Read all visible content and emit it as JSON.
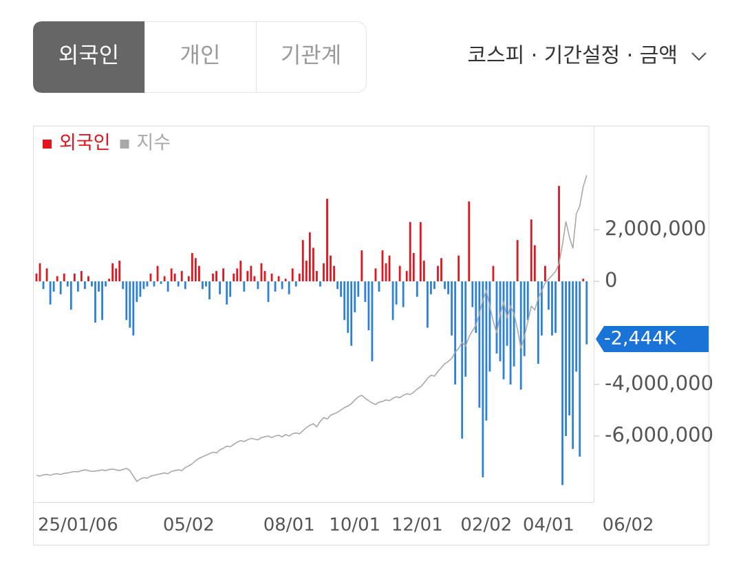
{
  "ui": {
    "tabs": [
      "외국인",
      "개인",
      "기관계"
    ],
    "active_tab": 0,
    "filter": "코스피 · 기간설정 · 금액"
  },
  "chart_data": {
    "type": "bar",
    "categories": [
      null,
      null,
      null,
      null,
      null,
      null,
      null,
      null,
      null,
      null,
      null,
      null,
      "25/01/06",
      null,
      null,
      null,
      null,
      null,
      null,
      null,
      null,
      null,
      null,
      null,
      null,
      null,
      null,
      null,
      null,
      null,
      null,
      null,
      null,
      null,
      null,
      null,
      null,
      null,
      null,
      null,
      null,
      null,
      null,
      null,
      "05/02",
      null,
      null,
      null,
      null,
      null,
      null,
      null,
      null,
      null,
      null,
      null,
      null,
      null,
      null,
      null,
      null,
      null,
      null,
      null,
      null,
      null,
      null,
      null,
      null,
      null,
      null,
      null,
      null,
      "08/01",
      null,
      null,
      null,
      null,
      null,
      null,
      null,
      null,
      null,
      null,
      null,
      null,
      null,
      null,
      null,
      null,
      null,
      null,
      "10/01",
      null,
      null,
      null,
      null,
      null,
      null,
      null,
      null,
      null,
      null,
      null,
      null,
      null,
      null,
      null,
      null,
      null,
      "12/01",
      null,
      null,
      null,
      null,
      null,
      null,
      null,
      null,
      null,
      null,
      null,
      null,
      null,
      null,
      null,
      null,
      null,
      null,
      null,
      "02/02",
      null,
      null,
      null,
      null,
      null,
      null,
      null,
      null,
      null,
      null,
      null,
      null,
      null,
      null,
      null,
      null,
      null,
      "04/01",
      null,
      null,
      null,
      null,
      null,
      null,
      null,
      null,
      null,
      null,
      null,
      null,
      null,
      null,
      null,
      null,
      null,
      null,
      null,
      null,
      null,
      null,
      "06/02"
    ],
    "series": [
      {
        "name": "외국인",
        "color": "#e3141c",
        "negative_color": "#2b80d8",
        "values": [
          300000,
          700000,
          -300000,
          500000,
          -900000,
          -400000,
          200000,
          -500000,
          300000,
          -200000,
          -1100000,
          300000,
          -400000,
          400000,
          -300000,
          200000,
          -200000,
          -1600000,
          -400000,
          -1500000,
          -200000,
          100000,
          700000,
          500000,
          800000,
          -300000,
          -1500000,
          -1800000,
          -2100000,
          -800000,
          -600000,
          -300000,
          -200000,
          300000,
          -200000,
          600000,
          -100000,
          200000,
          -400000,
          500000,
          300000,
          -200000,
          400000,
          -300000,
          200000,
          1100000,
          900000,
          600000,
          -300000,
          -200000,
          -700000,
          300000,
          400000,
          -500000,
          500000,
          -900000,
          -600000,
          300000,
          500000,
          800000,
          -400000,
          400000,
          600000,
          200000,
          -300000,
          700000,
          400000,
          -800000,
          300000,
          -400000,
          200000,
          -300000,
          100000,
          -500000,
          500000,
          -200000,
          300000,
          1600000,
          800000,
          1900000,
          1300000,
          400000,
          -200000,
          700000,
          3200000,
          1000000,
          600000,
          -300000,
          -600000,
          -1500000,
          -2000000,
          -2500000,
          -1200000,
          -600000,
          1200000,
          -800000,
          -1900000,
          -3100000,
          500000,
          -400000,
          1200000,
          700000,
          1000000,
          -1500000,
          -900000,
          600000,
          -1000000,
          400000,
          2300000,
          1100000,
          -600000,
          2300000,
          800000,
          -1800000,
          -500000,
          -300000,
          600000,
          900000,
          -300000,
          -500000,
          -2100000,
          -4000000,
          1000000,
          -6100000,
          -3700000,
          3100000,
          -1000000,
          -2000000,
          -4900000,
          -7600000,
          -5400000,
          -3500000,
          600000,
          -2800000,
          -3100000,
          -3800000,
          -2500000,
          -4000000,
          -3300000,
          1600000,
          -4200000,
          -2900000,
          -1500000,
          2400000,
          1400000,
          -3200000,
          -2100000,
          600000,
          -1100000,
          -2100000,
          -2000000,
          3700000,
          -7900000,
          -6000000,
          -5200000,
          -6500000,
          -3500000,
          -6800000,
          100000,
          -2444000,
          null,
          null,
          null,
          null,
          null,
          null,
          null,
          null,
          null,
          null,
          null,
          null
        ]
      },
      {
        "name": "지수",
        "color": "#a8a8a8",
        "type": "line",
        "values": [
          2500,
          2490,
          2505,
          2510,
          2500,
          2515,
          2520,
          2510,
          2525,
          2530,
          2540,
          2550,
          2545,
          2560,
          2570,
          2560,
          2550,
          2555,
          2560,
          2570,
          2560,
          2575,
          2580,
          2570,
          2560,
          2575,
          2590,
          2560,
          2490,
          2420,
          2450,
          2470,
          2460,
          2490,
          2500,
          2510,
          2520,
          2530,
          2520,
          2550,
          2560,
          2570,
          2560,
          2600,
          2620,
          2650,
          2690,
          2720,
          2740,
          2760,
          2780,
          2800,
          2790,
          2830,
          2850,
          2880,
          2870,
          2900,
          2930,
          2950,
          2940,
          2960,
          2980,
          2970,
          2960,
          2990,
          3000,
          3010,
          2990,
          3010,
          3020,
          3000,
          3030,
          3010,
          3040,
          3050,
          3040,
          3080,
          3120,
          3150,
          3170,
          3130,
          3200,
          3250,
          3230,
          3280,
          3300,
          3320,
          3350,
          3380,
          3400,
          3430,
          3480,
          3520,
          3540,
          3500,
          3470,
          3440,
          3420,
          3450,
          3460,
          3480,
          3470,
          3500,
          3520,
          3510,
          3540,
          3560,
          3550,
          3580,
          3620,
          3650,
          3700,
          3760,
          3800,
          3790,
          3850,
          3900,
          3950,
          3980,
          4020,
          4100,
          4150,
          4230,
          4180,
          4300,
          4380,
          4450,
          4600,
          4780,
          4900,
          4700,
          4500,
          4350,
          4600,
          4750,
          4550,
          4700,
          4600,
          4400,
          4150,
          4300,
          4500,
          4700,
          4650,
          4800,
          4900,
          5000,
          5050,
          5100,
          5150,
          5250,
          5500,
          5800,
          5600,
          5450,
          5900,
          6000,
          6250,
          6400,
          null,
          null,
          null,
          null,
          null,
          null,
          null,
          null,
          null,
          null,
          null,
          null
        ]
      }
    ],
    "ylim": [
      -8560000,
      6030000
    ],
    "yticks": [
      {
        "value": 2000000,
        "label": "2,000,000"
      },
      0,
      {
        "value": -4000000,
        "label": "-4,000,000"
      },
      {
        "value": -6000000,
        "label": "-6,000,000"
      }
    ],
    "current_value": {
      "value": -2444000,
      "label": "-2,444K",
      "color": "#1a74d8"
    }
  }
}
